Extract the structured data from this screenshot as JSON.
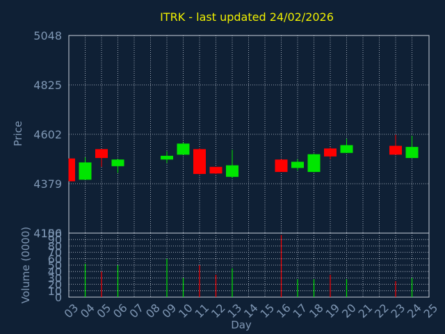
{
  "colors": {
    "background": "#0f2035",
    "plot_border": "#c8d0dc",
    "grid": "#c8d0dc",
    "title": "#f0f000",
    "axis_text": "#7f97b4",
    "up": "#00e600",
    "down": "#ff0000"
  },
  "chart_data": [
    {
      "type": "candlestick",
      "title": "ITRK - last updated 24/02/2026",
      "ylabel": "Price",
      "ylim": [
        4156,
        5048
      ],
      "yticks": [
        4156,
        4379,
        4602,
        4825,
        5048
      ],
      "grid": true,
      "candles": [
        {
          "day": "03",
          "open": 4493,
          "high": 4493,
          "low": 4390,
          "close": 4390
        },
        {
          "day": "04",
          "open": 4397,
          "high": 4498,
          "low": 4397,
          "close": 4475
        },
        {
          "day": "05",
          "open": 4535,
          "high": 4535,
          "low": 4455,
          "close": 4495
        },
        {
          "day": "06",
          "open": 4458,
          "high": 4490,
          "low": 4428,
          "close": 4488
        },
        {
          "day": "09",
          "open": 4488,
          "high": 4525,
          "low": 4472,
          "close": 4505
        },
        {
          "day": "10",
          "open": 4510,
          "high": 4565,
          "low": 4510,
          "close": 4560
        },
        {
          "day": "11",
          "open": 4535,
          "high": 4540,
          "low": 4420,
          "close": 4423
        },
        {
          "day": "12",
          "open": 4455,
          "high": 4455,
          "low": 4422,
          "close": 4425
        },
        {
          "day": "13",
          "open": 4410,
          "high": 4532,
          "low": 4405,
          "close": 4462
        },
        {
          "day": "16",
          "open": 4488,
          "high": 4490,
          "low": 4435,
          "close": 4432
        },
        {
          "day": "17",
          "open": 4450,
          "high": 4490,
          "low": 4438,
          "close": 4478
        },
        {
          "day": "18",
          "open": 4432,
          "high": 4515,
          "low": 4430,
          "close": 4512
        },
        {
          "day": "19",
          "open": 4538,
          "high": 4544,
          "low": 4490,
          "close": 4502
        },
        {
          "day": "20",
          "open": 4518,
          "high": 4582,
          "low": 4518,
          "close": 4553
        },
        {
          "day": "23",
          "open": 4550,
          "high": 4600,
          "low": 4510,
          "close": 4510
        },
        {
          "day": "24",
          "open": 4495,
          "high": 4595,
          "low": 4495,
          "close": 4545
        }
      ]
    },
    {
      "type": "bar",
      "ylabel": "Volume (0000)",
      "xlabel": "Day",
      "ylim": [
        0,
        100
      ],
      "yticks": [
        0,
        10,
        20,
        30,
        40,
        50,
        60,
        70,
        80,
        90,
        100
      ],
      "categories": [
        "03",
        "04",
        "05",
        "06",
        "07",
        "08",
        "09",
        "10",
        "11",
        "12",
        "13",
        "14",
        "15",
        "16",
        "17",
        "18",
        "19",
        "20",
        "21",
        "22",
        "23",
        "24",
        "25"
      ],
      "grid": true,
      "bars": [
        {
          "day": "04",
          "value": 52,
          "direction": "up"
        },
        {
          "day": "05",
          "value": 40,
          "direction": "down"
        },
        {
          "day": "06",
          "value": 50,
          "direction": "up"
        },
        {
          "day": "09",
          "value": 60,
          "direction": "up"
        },
        {
          "day": "10",
          "value": 30,
          "direction": "up"
        },
        {
          "day": "11",
          "value": 50,
          "direction": "down"
        },
        {
          "day": "12",
          "value": 35,
          "direction": "down"
        },
        {
          "day": "13",
          "value": 45,
          "direction": "up"
        },
        {
          "day": "16",
          "value": 97,
          "direction": "down"
        },
        {
          "day": "17",
          "value": 28,
          "direction": "up"
        },
        {
          "day": "18",
          "value": 28,
          "direction": "up"
        },
        {
          "day": "19",
          "value": 35,
          "direction": "down"
        },
        {
          "day": "20",
          "value": 28,
          "direction": "up"
        },
        {
          "day": "23",
          "value": 25,
          "direction": "down"
        },
        {
          "day": "24",
          "value": 30,
          "direction": "up"
        }
      ]
    }
  ]
}
